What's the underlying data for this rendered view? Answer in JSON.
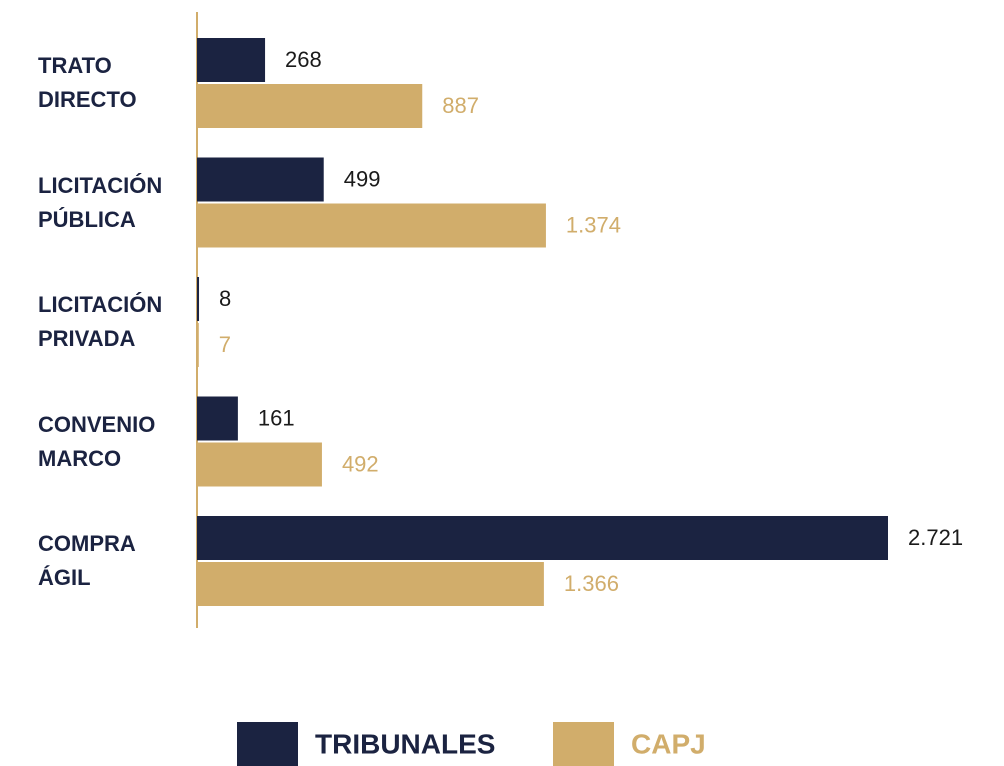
{
  "chart_data": {
    "type": "bar",
    "orientation": "horizontal",
    "categories": [
      "TRATO DIRECTO",
      "LICITACIÓN PÚBLICA",
      "LICITACIÓN PRIVADA",
      "CONVENIO MARCO",
      "COMPRA ÁGIL"
    ],
    "series": [
      {
        "name": "TRIBUNALES",
        "color": "#1b2341",
        "values": [
          268,
          499,
          8,
          161,
          2721
        ],
        "value_labels": [
          "268",
          "499",
          "8",
          "161",
          "2.721"
        ]
      },
      {
        "name": "CAPJ",
        "color": "#d1ad6b",
        "values": [
          887,
          1374,
          7,
          492,
          1366
        ],
        "value_labels": [
          "887",
          "1.374",
          "7",
          "492",
          "1.366"
        ]
      }
    ],
    "legend": "bottom"
  }
}
